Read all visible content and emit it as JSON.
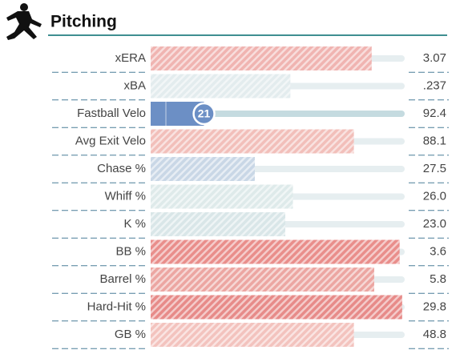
{
  "chart_data": {
    "type": "bar",
    "title": "Pitching",
    "categories": [
      "xERA",
      "xBA",
      "Fastball Velo",
      "Avg Exit Velo",
      "Chase %",
      "Whiff %",
      "K %",
      "BB %",
      "Barrel %",
      "Hard-Hit %",
      "GB %"
    ],
    "values": [
      87,
      55,
      21,
      80,
      41,
      56,
      53,
      98,
      88,
      99,
      80
    ],
    "value_labels": [
      null,
      null,
      "21",
      null,
      null,
      null,
      null,
      null,
      null,
      null,
      null
    ],
    "stats": [
      "3.07",
      ".237",
      "92.4",
      "88.1",
      "27.5",
      "26.0",
      "23.0",
      "3.6",
      "5.8",
      "29.8",
      "48.8"
    ],
    "colors": [
      "#f0b4b1",
      "#e3ecee",
      "#6c8fc5",
      "#f2bfba",
      "#c9d7e6",
      "#deeaea",
      "#d9e6e8",
      "#e98e8b",
      "#eca6a2",
      "#e78b89",
      "#f3c3be"
    ],
    "xlim": [
      0,
      100
    ]
  }
}
